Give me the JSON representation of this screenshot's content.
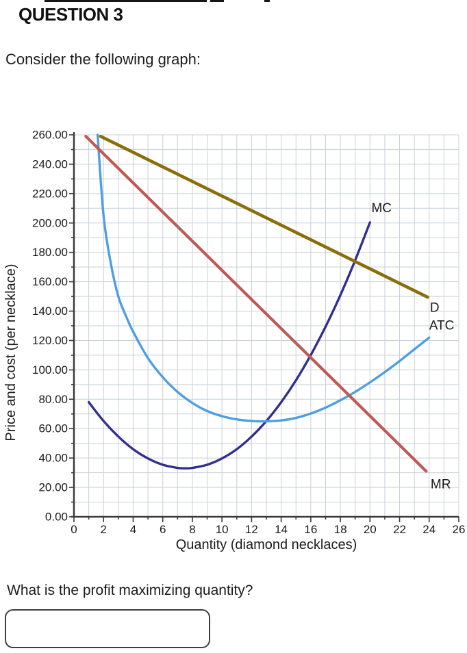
{
  "page": {
    "question_label": "QUESTION 3",
    "intro_text": "Consider the following graph:",
    "question_text": "What is the profit maximizing quantity?",
    "answer_value": ""
  },
  "chart_data": {
    "type": "line",
    "title": "",
    "xlabel": "Quantity (diamond necklaces)",
    "ylabel": "Price and cost (per necklace)",
    "xlim": [
      0,
      26
    ],
    "ylim": [
      0,
      260
    ],
    "grid": true,
    "legend_position": "none",
    "x_tick_major": 2,
    "x_tick_minor": 1,
    "y_tick_major": 20,
    "y_tick_minor": 10,
    "x_tick_labels": [
      "0",
      "2",
      "4",
      "6",
      "8",
      "10",
      "12",
      "14",
      "16",
      "18",
      "20",
      "22",
      "24",
      "26"
    ],
    "y_tick_labels": [
      "0.00",
      "20.00",
      "40.00",
      "60.00",
      "80.00",
      "100.00",
      "120.00",
      "140.00",
      "160.00",
      "180.00",
      "200.00",
      "220.00",
      "240.00",
      "260.00"
    ],
    "colors": {
      "mc": "#312e93",
      "atc": "#4d9fe3",
      "d": "#8b6d0a",
      "mr": "#c05853",
      "grid": "#c9cfd7",
      "axis": "#3a3a3a"
    },
    "series": [
      {
        "name": "MC",
        "color": "#312e93",
        "width": 3.4,
        "points": [
          [
            1,
            78
          ],
          [
            2,
            65.2
          ],
          [
            3,
            54.6
          ],
          [
            4,
            46
          ],
          [
            5,
            39.7
          ],
          [
            6,
            35.4
          ],
          [
            7,
            33.3
          ],
          [
            7.5,
            33
          ],
          [
            8,
            33.3
          ],
          [
            9,
            35.4
          ],
          [
            10,
            39.7
          ],
          [
            11,
            46
          ],
          [
            12,
            54.6
          ],
          [
            13,
            65.2
          ],
          [
            14,
            78
          ],
          [
            15,
            92.9
          ],
          [
            16,
            110.1
          ],
          [
            17,
            129.4
          ],
          [
            18,
            150.9
          ],
          [
            19,
            174.6
          ],
          [
            20,
            200.4
          ]
        ]
      },
      {
        "name": "ATC",
        "color": "#4d9fe3",
        "width": 3.4,
        "points": [
          [
            1.6,
            260
          ],
          [
            2,
            205
          ],
          [
            2.5,
            172
          ],
          [
            3,
            150
          ],
          [
            3.5,
            137
          ],
          [
            4,
            126
          ],
          [
            5,
            108
          ],
          [
            6,
            95
          ],
          [
            7,
            85
          ],
          [
            8,
            77.5
          ],
          [
            9,
            72
          ],
          [
            10,
            68.5
          ],
          [
            11,
            66.3
          ],
          [
            12,
            65.2
          ],
          [
            13,
            65
          ],
          [
            14,
            65.6
          ],
          [
            15,
            67.3
          ],
          [
            16,
            70.3
          ],
          [
            17,
            74.3
          ],
          [
            18,
            79.3
          ],
          [
            19,
            85
          ],
          [
            20,
            91.5
          ],
          [
            21,
            98.5
          ],
          [
            22,
            106
          ],
          [
            23,
            114
          ],
          [
            24,
            122
          ]
        ]
      },
      {
        "name": "D",
        "color": "#8b6d0a",
        "width": 4.6,
        "points": [
          [
            1.8,
            259
          ],
          [
            23.9,
            149.5
          ]
        ]
      },
      {
        "name": "MR",
        "color": "#c05853",
        "width": 4.2,
        "points": [
          [
            0.8,
            259
          ],
          [
            23.8,
            31
          ]
        ]
      }
    ],
    "curve_labels": [
      {
        "text": "MC",
        "x": 20.1,
        "y": 210
      },
      {
        "text": "D",
        "x": 24.05,
        "y": 142
      },
      {
        "text": "ATC",
        "x": 24.0,
        "y": 130
      },
      {
        "text": "MR",
        "x": 24.1,
        "y": 22
      }
    ]
  }
}
